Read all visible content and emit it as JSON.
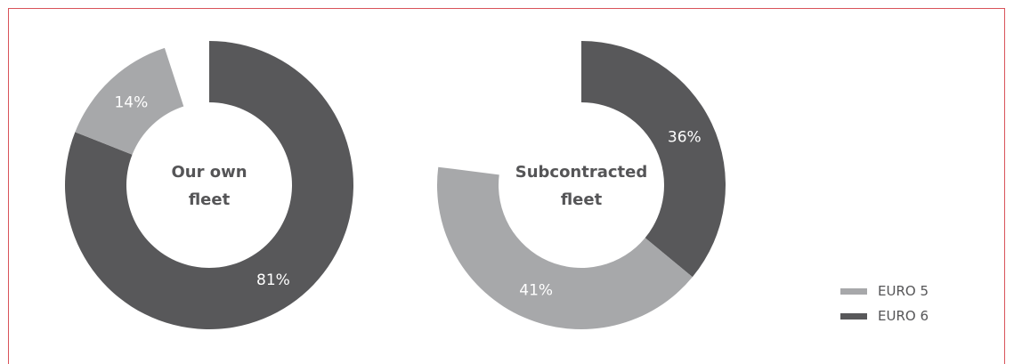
{
  "chart_data": [
    {
      "type": "donut",
      "center_label": [
        "Our own",
        "fleet"
      ],
      "slices": [
        {
          "label": "81%",
          "value": 81,
          "series": "EURO 6",
          "color": "#58585a"
        },
        {
          "label": "14%",
          "value": 14,
          "series": "EURO 5",
          "color": "#a7a8aa"
        }
      ],
      "empty_gap_percent": 5
    },
    {
      "type": "donut",
      "center_label": [
        "Subcontracted",
        "fleet"
      ],
      "slices": [
        {
          "label": "36%",
          "value": 36,
          "series": "EURO 6",
          "color": "#58585a"
        },
        {
          "label": "41%",
          "value": 41,
          "series": "EURO 5",
          "color": "#a7a8aa"
        }
      ],
      "empty_gap_percent": 23
    }
  ],
  "legend": [
    {
      "label": "EURO 5",
      "color": "#a7a8aa"
    },
    {
      "label": "EURO 6",
      "color": "#58585a"
    }
  ],
  "colors": {
    "frame": "#d9535a",
    "center_text": "#555557"
  }
}
